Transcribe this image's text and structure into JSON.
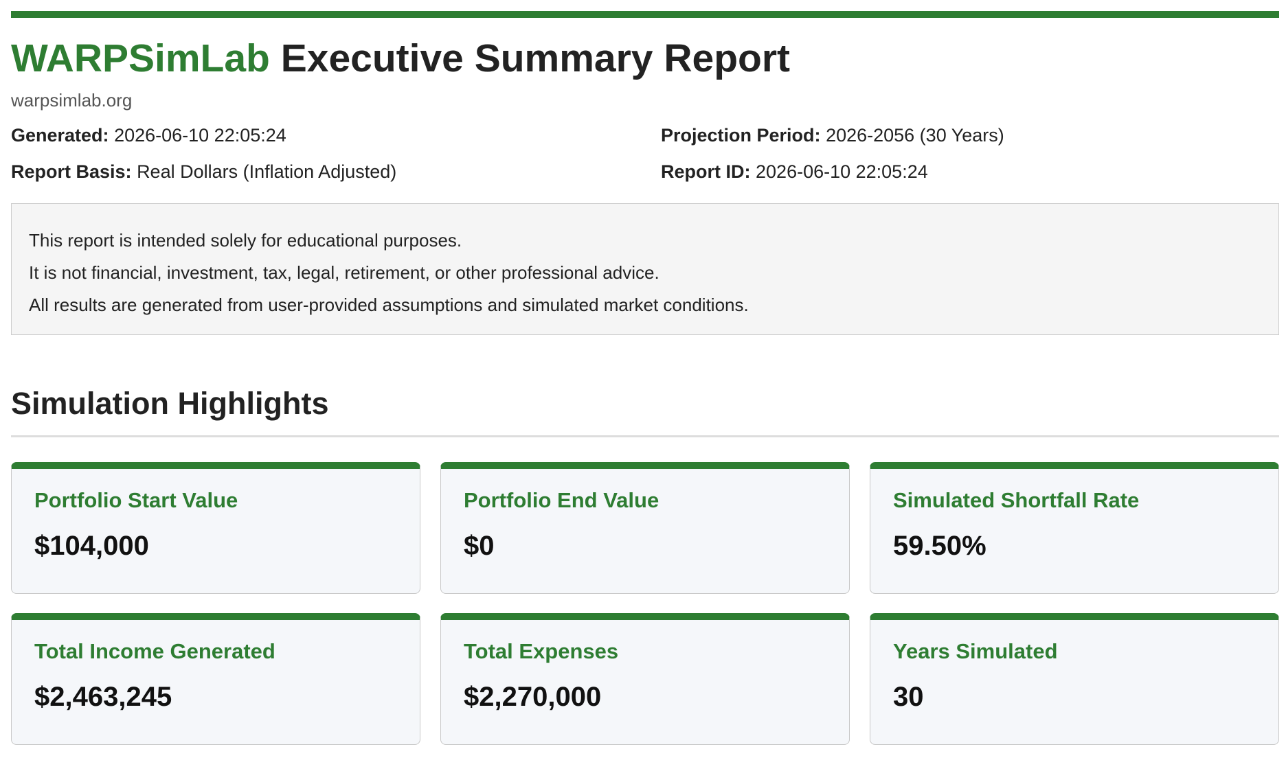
{
  "header": {
    "brand": "WARPSimLab",
    "title": "Executive Summary Report",
    "site": "warpsimlab.org"
  },
  "meta": {
    "generated_label": "Generated:",
    "generated_value": "2026-06-10 22:05:24",
    "projection_label": "Projection Period:",
    "projection_value": "2026-2056 (30 Years)",
    "basis_label": "Report Basis:",
    "basis_value": "Real Dollars (Inflation Adjusted)",
    "report_id_label": "Report ID:",
    "report_id_value": "2026-06-10 22:05:24"
  },
  "disclaimer": {
    "lines": [
      "This report is intended solely for educational purposes.",
      "It is not financial, investment, tax, legal, retirement, or other professional advice.",
      "All results are generated from user-provided assumptions and simulated market conditions."
    ]
  },
  "highlights": {
    "title": "Simulation Highlights",
    "cards": [
      {
        "label": "Portfolio Start Value",
        "value": "$104,000"
      },
      {
        "label": "Portfolio End Value",
        "value": "$0"
      },
      {
        "label": "Simulated Shortfall Rate",
        "value": "59.50%"
      },
      {
        "label": "Total Income Generated",
        "value": "$2,463,245"
      },
      {
        "label": "Total Expenses",
        "value": "$2,270,000"
      },
      {
        "label": "Years Simulated",
        "value": "30"
      }
    ]
  },
  "colors": {
    "accent": "#2e7d32",
    "card_background": "#f5f7fa",
    "disclaimer_background": "#f5f5f5"
  }
}
